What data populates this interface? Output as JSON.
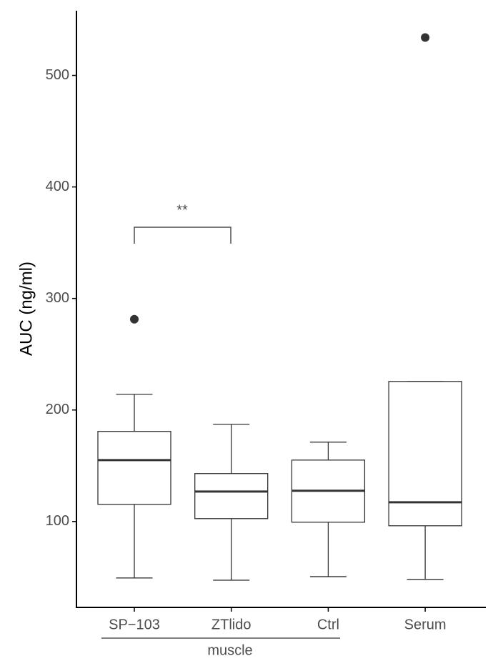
{
  "chart_data": {
    "type": "box",
    "y_label": "AUC (ng/ml)",
    "categories": [
      "SP−103",
      "ZTlido",
      "Ctrl",
      "Serum"
    ],
    "group_label": "muscle",
    "annotation": "**",
    "boxes": [
      {
        "whisker_low": 49.4,
        "q1": 115.4,
        "median": 155.1,
        "q3": 180.8,
        "whisker_high": 214.1,
        "outliers": [
          281.4
        ]
      },
      {
        "whisker_low": 47.4,
        "q1": 102.6,
        "median": 126.9,
        "q3": 143.0,
        "whisker_high": 187.2,
        "outliers": []
      },
      {
        "whisker_low": 50.6,
        "q1": 99.4,
        "median": 127.6,
        "q3": 155.1,
        "whisker_high": 171.2,
        "outliers": []
      },
      {
        "whisker_low": 48.1,
        "q1": 96.2,
        "median": 117.3,
        "q3": 225.6,
        "whisker_high": 225.6,
        "outliers": [
          534.0
        ]
      }
    ],
    "color": "#333333",
    "ylim": [
      23,
      558
    ],
    "yticks": [
      100,
      200,
      300,
      400,
      500
    ]
  }
}
